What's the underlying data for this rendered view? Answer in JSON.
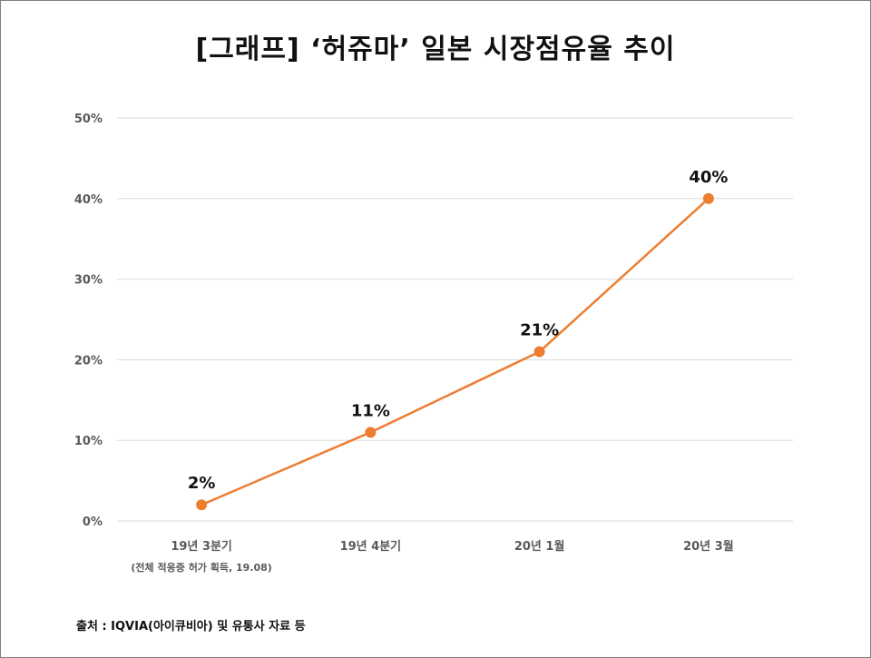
{
  "chart_data": {
    "type": "line",
    "title": "[그래프] ‘허쥬마’ 일본 시장점유율 추이",
    "categories": [
      "19년 3분기",
      "19년 4분기",
      "20년 1월",
      "20년 3월"
    ],
    "category_notes": [
      "(전체 적응증 허가 획득, 19.08)",
      "",
      "",
      ""
    ],
    "series": [
      {
        "values": [
          2,
          11,
          21,
          40
        ],
        "color": "#ED7D31"
      }
    ],
    "data_labels": [
      "2%",
      "11%",
      "21%",
      "40%"
    ],
    "y_ticks": [
      "0%",
      "10%",
      "20%",
      "30%",
      "40%",
      "50%"
    ],
    "ylim": [
      0,
      50
    ],
    "grid": true,
    "legend": "none",
    "source": "출처 : IQVIA(아이큐비아) 및 유통사 자료 등"
  },
  "colors": {
    "line": "#ED7D31",
    "grid": "#d9d9d9",
    "axis_text": "#595959"
  }
}
